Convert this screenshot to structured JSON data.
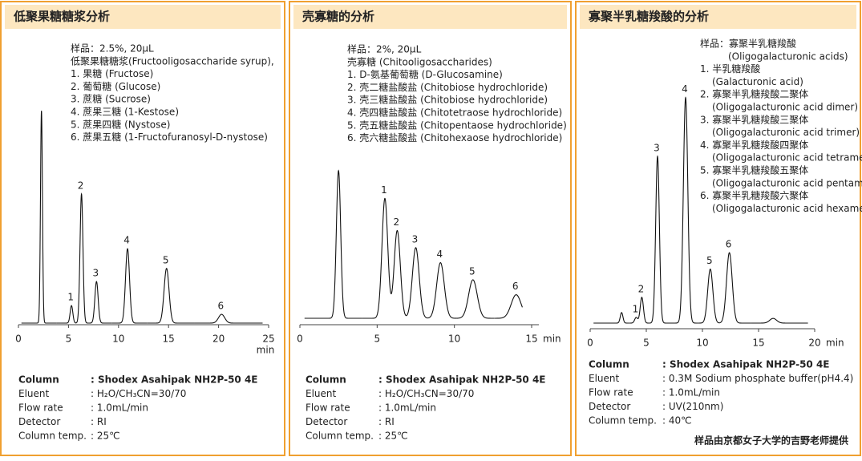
{
  "panels": [
    {
      "title": "低聚果糖糖浆分析",
      "sample": [
        "样品：2.5%, 20μL",
        "低聚果糖糖浆(Fructooligosaccharide syrup),",
        "1. 果糖 (Fructose)",
        "2. 葡萄糖 (Glucose)",
        "3. 蔗糖 (Sucrose)",
        "4. 蔗果三糖 (1-Kestose)",
        "5. 蔗果四糖 (Nystose)",
        "6. 蔗果五糖 (1-Fructofuranosyl-D-nystose)"
      ],
      "chromatogram": {
        "xlim": [
          0,
          25
        ],
        "xticks": [
          0,
          5,
          10,
          15,
          20,
          25
        ],
        "x_unit": "min",
        "peaks": [
          {
            "label": null,
            "time": 2.3,
            "height": 0.97
          },
          {
            "label": "1",
            "time": 5.3,
            "height": 0.08
          },
          {
            "label": "2",
            "time": 6.3,
            "height": 0.59
          },
          {
            "label": "3",
            "time": 7.8,
            "height": 0.19
          },
          {
            "label": "4",
            "time": 10.9,
            "height": 0.34
          },
          {
            "label": "5",
            "time": 14.8,
            "height": 0.25
          },
          {
            "label": "6",
            "time": 20.3,
            "height": 0.04
          }
        ]
      },
      "conditions": [
        {
          "label": "Column",
          "value": ": Shodex Asahipak NH2P-50 4E"
        },
        {
          "label": "Eluent",
          "value": ": H₂O/CH₃CN=30/70"
        },
        {
          "label": "Flow rate",
          "value": ": 1.0mL/min"
        },
        {
          "label": "Detector",
          "value": ": RI"
        },
        {
          "label": "Column temp.",
          "value": ": 25℃"
        }
      ]
    },
    {
      "title": "壳寡糖的分析",
      "sample": [
        "样品：2%, 20μL",
        "壳寡糖 (Chitooligosaccharides)",
        "1. D-氨基葡萄糖 (D-Glucosamine)",
        "2. 壳二糖盐酸盐 (Chitobiose hydrochloride)",
        "3. 壳三糖盐酸盐 (Chitobiose hydrochloride)",
        "4. 壳四糖盐酸盐 (Chitotetraose hydrochloride)",
        "5. 壳五糖盐酸盐 (Chitopentaose hydrochloride)",
        "6. 壳六糖盐酸盐 (Chitohexaose hydrochloride)"
      ],
      "chromatogram": {
        "xlim": [
          0,
          15
        ],
        "xticks": [
          0,
          5,
          10,
          15
        ],
        "x_unit": "min",
        "peaks": [
          {
            "label": null,
            "time": 2.5,
            "height": 0.69
          },
          {
            "label": "1",
            "time": 5.5,
            "height": 0.56
          },
          {
            "label": "2",
            "time": 6.3,
            "height": 0.41
          },
          {
            "label": "3",
            "time": 7.5,
            "height": 0.33
          },
          {
            "label": "4",
            "time": 9.1,
            "height": 0.26
          },
          {
            "label": "5",
            "time": 11.2,
            "height": 0.18
          },
          {
            "label": "6",
            "time": 14,
            "height": 0.11
          }
        ]
      },
      "conditions": [
        {
          "label": "Column",
          "value": ": Shodex Asahipak NH2P-50 4E"
        },
        {
          "label": "Eluent",
          "value": ": H₂O/CH₃CN=30/70"
        },
        {
          "label": "Flow rate",
          "value": ": 1.0mL/min"
        },
        {
          "label": "Detector",
          "value": ": RI"
        },
        {
          "label": "Column temp.",
          "value": ": 25℃"
        }
      ]
    },
    {
      "title": "寡聚半乳糖羧酸的分析",
      "sample": [
        "样品：寡聚半乳糖羧酸",
        "(Oligogalacturonic acids)",
        "1. 半乳糖羧酸",
        "(Galacturonic acid)",
        "2. 寡聚半乳糖羧酸二聚体",
        "(Oligogalacturonic acid dimer)",
        "3. 寡聚半乳糖羧酸三聚体",
        "(Oligogalacturonic acid trimer)",
        "4. 寡聚半乳糖羧酸四聚体",
        "(Oligogalacturonic acid tetramer)",
        "5. 寡聚半乳糖羧酸五聚体",
        "(Oligogalacturonic acid pentamer)",
        "6. 寡聚半乳糖羧酸六聚体",
        "(Oligogalacturonic acid hexamer)"
      ],
      "chromatogram": {
        "xlim": [
          0,
          20
        ],
        "xticks": [
          0,
          5,
          10,
          15,
          20
        ],
        "x_unit": "min",
        "peaks": [
          {
            "label": null,
            "time": 2.8,
            "height": 0.045
          },
          {
            "label": "1",
            "time": 4.1,
            "height": 0.024
          },
          {
            "label": "2",
            "time": 4.6,
            "height": 0.11
          },
          {
            "label": "3",
            "time": 6.0,
            "height": 0.71
          },
          {
            "label": "4",
            "time": 8.5,
            "height": 0.96
          },
          {
            "label": "5",
            "time": 10.7,
            "height": 0.23
          },
          {
            "label": "6",
            "time": 12.4,
            "height": 0.3
          },
          {
            "label": null,
            "time": 16.3,
            "height": 0.02
          }
        ]
      },
      "conditions": [
        {
          "label": "Column",
          "value": ": Shodex Asahipak NH2P-50 4E"
        },
        {
          "label": "Eluent",
          "value": ": 0.3M Sodium phosphate buffer(pH4.4)"
        },
        {
          "label": "Flow rate",
          "value": ": 1.0mL/min"
        },
        {
          "label": "Detector",
          "value": ": UV(210nm)"
        },
        {
          "label": "Column temp.",
          "value": ": 40℃"
        }
      ]
    }
  ],
  "note": "样品由京都女子大学的吉野老师提供"
}
